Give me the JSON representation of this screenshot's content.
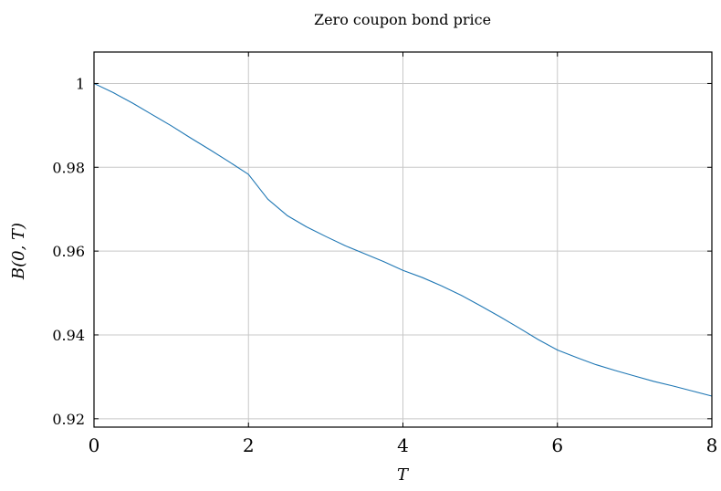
{
  "chart_data": {
    "type": "line",
    "title": "Zero coupon bond price",
    "xlabel": "T",
    "ylabel": "B(0, T)",
    "xlim": [
      0,
      8
    ],
    "ylim": [
      0.918,
      1.0075
    ],
    "xticks": [
      0,
      2,
      4,
      6,
      8
    ],
    "xtick_labels": [
      "0",
      "2",
      "4",
      "6",
      "8"
    ],
    "yticks": [
      0.92,
      0.94,
      0.96,
      0.98,
      1.0
    ],
    "ytick_labels": [
      "0.92",
      "0.94",
      "0.96",
      "0.98",
      "1"
    ],
    "grid": true,
    "colors": {
      "line": "#1f77b4"
    },
    "series": [
      {
        "x": [
          0,
          0.25,
          0.5,
          0.75,
          1.0,
          1.25,
          1.5,
          1.75,
          2.0,
          2.25,
          2.5,
          2.75,
          3.0,
          3.25,
          3.5,
          3.75,
          4.0,
          4.25,
          4.5,
          4.75,
          5.0,
          5.25,
          5.5,
          5.75,
          6.0,
          6.25,
          6.5,
          6.75,
          7.0,
          7.25,
          7.5,
          7.75,
          8.0
        ],
        "y": [
          1.0,
          0.9978,
          0.9953,
          0.9926,
          0.9899,
          0.987,
          0.9842,
          0.9813,
          0.9783,
          0.9724,
          0.9685,
          0.9658,
          0.9635,
          0.9613,
          0.9594,
          0.9575,
          0.9554,
          0.9537,
          0.9517,
          0.9495,
          0.947,
          0.9444,
          0.9417,
          0.9389,
          0.9364,
          0.9346,
          0.9329,
          0.9315,
          0.9302,
          0.9289,
          0.9278,
          0.9266,
          0.9254
        ]
      }
    ]
  }
}
